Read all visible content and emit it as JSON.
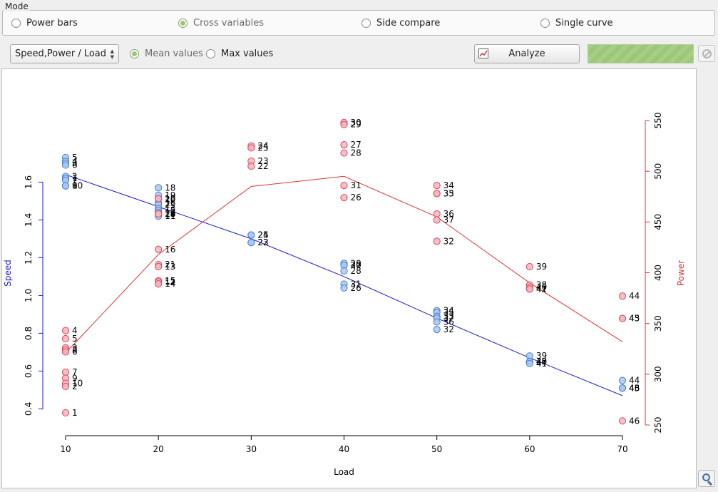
{
  "mode": {
    "title": "Mode",
    "options": [
      {
        "label": "Power bars",
        "checked": false
      },
      {
        "label": "Cross variables",
        "checked": true
      },
      {
        "label": "Side compare",
        "checked": false
      },
      {
        "label": "Single curve",
        "checked": false
      }
    ]
  },
  "toolbar": {
    "variable_select": "Speed,Power / Load",
    "value_options": [
      {
        "label": "Mean values",
        "checked": true
      },
      {
        "label": "Max values",
        "checked": false
      }
    ],
    "analyze_label": "Analyze",
    "progress": 1.0
  },
  "icons": {
    "analyze": "chart-icon",
    "stop": "stop-icon",
    "zoom": "magnifier-icon"
  },
  "colors": {
    "speed": "#1a1ad6",
    "speed_fill": "#a9c8f2",
    "speed_stroke": "#4d7fd1",
    "power": "#e03333",
    "power_fill": "#f7b4bd",
    "power_stroke": "#d94a5c",
    "progress": "#a6cf84"
  },
  "chart_data": {
    "type": "scatter",
    "xlabel": "Load",
    "ylabel_left": "Speed",
    "ylabel_right": "Power",
    "xlim": [
      10,
      70
    ],
    "ylim_left": [
      0.36,
      1.76
    ],
    "ylim_right": [
      250,
      550
    ],
    "x_ticks": [
      10,
      20,
      30,
      40,
      50,
      60,
      70
    ],
    "y_left_ticks": [
      0.4,
      0.6,
      0.8,
      1.0,
      1.2,
      1.4,
      1.6
    ],
    "y_right_ticks": [
      250,
      300,
      350,
      400,
      450,
      500,
      550
    ],
    "series": [
      {
        "name": "Speed",
        "axis": "left",
        "points": [
          {
            "x": 10,
            "y": 1.73,
            "label": "5"
          },
          {
            "x": 10,
            "y": 1.71,
            "label": "4"
          },
          {
            "x": 10,
            "y": 1.7,
            "label": "3"
          },
          {
            "x": 10,
            "y": 1.69,
            "label": "6"
          },
          {
            "x": 10,
            "y": 1.63,
            "label": "2"
          },
          {
            "x": 10,
            "y": 1.62,
            "label": "1"
          },
          {
            "x": 10,
            "y": 1.61,
            "label": "7"
          },
          {
            "x": 10,
            "y": 1.58,
            "label": "8"
          },
          {
            "x": 10,
            "y": 1.58,
            "label": "9"
          },
          {
            "x": 10,
            "y": 1.58,
            "label": "10"
          },
          {
            "x": 20,
            "y": 1.57,
            "label": "18"
          },
          {
            "x": 20,
            "y": 1.53,
            "label": "19"
          },
          {
            "x": 20,
            "y": 1.51,
            "label": "20"
          },
          {
            "x": 20,
            "y": 1.49,
            "label": "16"
          },
          {
            "x": 20,
            "y": 1.48,
            "label": "21"
          },
          {
            "x": 20,
            "y": 1.46,
            "label": "13"
          },
          {
            "x": 20,
            "y": 1.45,
            "label": "15"
          },
          {
            "x": 20,
            "y": 1.44,
            "label": "12"
          },
          {
            "x": 20,
            "y": 1.43,
            "label": "14"
          },
          {
            "x": 20,
            "y": 1.42,
            "label": "11"
          },
          {
            "x": 30,
            "y": 1.32,
            "label": "24"
          },
          {
            "x": 30,
            "y": 1.32,
            "label": "25"
          },
          {
            "x": 30,
            "y": 1.28,
            "label": "22"
          },
          {
            "x": 30,
            "y": 1.28,
            "label": "23"
          },
          {
            "x": 40,
            "y": 1.17,
            "label": "29"
          },
          {
            "x": 40,
            "y": 1.16,
            "label": "30"
          },
          {
            "x": 40,
            "y": 1.16,
            "label": "27"
          },
          {
            "x": 40,
            "y": 1.13,
            "label": "28"
          },
          {
            "x": 40,
            "y": 1.06,
            "label": "31"
          },
          {
            "x": 40,
            "y": 1.04,
            "label": "26"
          },
          {
            "x": 50,
            "y": 0.92,
            "label": "34"
          },
          {
            "x": 50,
            "y": 0.91,
            "label": "35"
          },
          {
            "x": 50,
            "y": 0.89,
            "label": "33"
          },
          {
            "x": 50,
            "y": 0.88,
            "label": "37"
          },
          {
            "x": 50,
            "y": 0.86,
            "label": "36"
          },
          {
            "x": 50,
            "y": 0.82,
            "label": "32"
          },
          {
            "x": 60,
            "y": 0.68,
            "label": "39"
          },
          {
            "x": 60,
            "y": 0.65,
            "label": "38"
          },
          {
            "x": 60,
            "y": 0.65,
            "label": "40"
          },
          {
            "x": 60,
            "y": 0.65,
            "label": "42"
          },
          {
            "x": 60,
            "y": 0.64,
            "label": "41"
          },
          {
            "x": 70,
            "y": 0.55,
            "label": "44"
          },
          {
            "x": 70,
            "y": 0.51,
            "label": "46"
          },
          {
            "x": 70,
            "y": 0.51,
            "label": "45"
          },
          {
            "x": 70,
            "y": 0.51,
            "label": "43"
          }
        ],
        "trend": [
          {
            "x": 10,
            "y": 1.64
          },
          {
            "x": 20,
            "y": 1.47
          },
          {
            "x": 30,
            "y": 1.3
          },
          {
            "x": 40,
            "y": 1.1
          },
          {
            "x": 50,
            "y": 0.88
          },
          {
            "x": 60,
            "y": 0.67
          },
          {
            "x": 70,
            "y": 0.47
          }
        ]
      },
      {
        "name": "Power",
        "axis": "right",
        "points": [
          {
            "x": 10,
            "y": 343,
            "label": "4"
          },
          {
            "x": 10,
            "y": 335,
            "label": "5"
          },
          {
            "x": 10,
            "y": 326,
            "label": "3"
          },
          {
            "x": 10,
            "y": 324,
            "label": "8"
          },
          {
            "x": 10,
            "y": 322,
            "label": "6"
          },
          {
            "x": 10,
            "y": 302,
            "label": "7"
          },
          {
            "x": 10,
            "y": 296,
            "label": "9"
          },
          {
            "x": 10,
            "y": 291,
            "label": "10"
          },
          {
            "x": 10,
            "y": 288,
            "label": "2"
          },
          {
            "x": 10,
            "y": 262,
            "label": "1"
          },
          {
            "x": 20,
            "y": 473,
            "label": "18"
          },
          {
            "x": 20,
            "y": 458,
            "label": "20"
          },
          {
            "x": 20,
            "y": 458,
            "label": "19"
          },
          {
            "x": 20,
            "y": 423,
            "label": "16"
          },
          {
            "x": 20,
            "y": 408,
            "label": "21"
          },
          {
            "x": 20,
            "y": 406,
            "label": "13"
          },
          {
            "x": 20,
            "y": 392,
            "label": "15"
          },
          {
            "x": 20,
            "y": 391,
            "label": "12"
          },
          {
            "x": 20,
            "y": 389,
            "label": "14"
          },
          {
            "x": 30,
            "y": 525,
            "label": "24"
          },
          {
            "x": 30,
            "y": 523,
            "label": "25"
          },
          {
            "x": 30,
            "y": 510,
            "label": "23"
          },
          {
            "x": 30,
            "y": 505,
            "label": "22"
          },
          {
            "x": 40,
            "y": 548,
            "label": "30"
          },
          {
            "x": 40,
            "y": 546,
            "label": "29"
          },
          {
            "x": 40,
            "y": 526,
            "label": "27"
          },
          {
            "x": 40,
            "y": 518,
            "label": "28"
          },
          {
            "x": 40,
            "y": 486,
            "label": "31"
          },
          {
            "x": 40,
            "y": 474,
            "label": "26"
          },
          {
            "x": 50,
            "y": 486,
            "label": "34"
          },
          {
            "x": 50,
            "y": 478,
            "label": "35"
          },
          {
            "x": 50,
            "y": 478,
            "label": "33"
          },
          {
            "x": 50,
            "y": 458,
            "label": "36"
          },
          {
            "x": 50,
            "y": 452,
            "label": "37"
          },
          {
            "x": 50,
            "y": 431,
            "label": "32"
          },
          {
            "x": 60,
            "y": 406,
            "label": "39"
          },
          {
            "x": 60,
            "y": 388,
            "label": "38"
          },
          {
            "x": 60,
            "y": 386,
            "label": "40"
          },
          {
            "x": 60,
            "y": 384,
            "label": "41"
          },
          {
            "x": 60,
            "y": 384,
            "label": "42"
          },
          {
            "x": 70,
            "y": 377,
            "label": "44"
          },
          {
            "x": 70,
            "y": 355,
            "label": "45"
          },
          {
            "x": 70,
            "y": 355,
            "label": "43"
          },
          {
            "x": 70,
            "y": 254,
            "label": "46"
          }
        ],
        "trend": [
          {
            "x": 10,
            "y": 321
          },
          {
            "x": 20,
            "y": 418
          },
          {
            "x": 30,
            "y": 485
          },
          {
            "x": 40,
            "y": 495
          },
          {
            "x": 50,
            "y": 455
          },
          {
            "x": 60,
            "y": 390
          },
          {
            "x": 70,
            "y": 332
          }
        ]
      }
    ],
    "grid": false,
    "legend": "none"
  }
}
